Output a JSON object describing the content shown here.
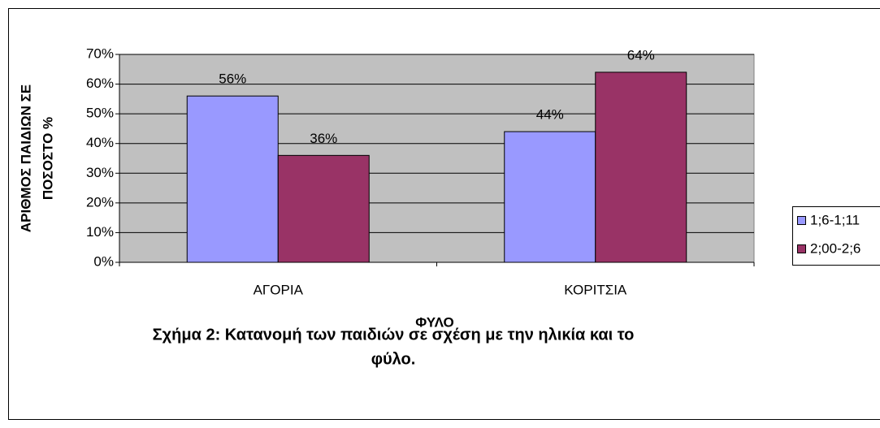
{
  "chart_data": {
    "type": "bar",
    "y_label": [
      "ΑΡΙΘΜΟΣ ΠΑΙΔΙΩΝ ΣΕ",
      "ΠΟΣΟΣΤΟ %"
    ],
    "x_label": "ΦΥΛΟ",
    "categories": [
      "ΑΓΟΡΙΑ",
      "ΚΟΡΙΤΣΙΑ"
    ],
    "series": [
      {
        "name": "1;6-1;11",
        "color": "#9999ff",
        "values": [
          56,
          44
        ],
        "value_labels": [
          "56%",
          "44%"
        ]
      },
      {
        "name": "2;00-2;6",
        "color": "#993366",
        "values": [
          36,
          64
        ],
        "value_labels": [
          "36%",
          "64%"
        ]
      }
    ],
    "ylim": [
      0,
      70
    ],
    "yticks": [
      {
        "value": 0,
        "label": "0%"
      },
      {
        "value": 10,
        "label": "10%"
      },
      {
        "value": 20,
        "label": "20%"
      },
      {
        "value": 30,
        "label": "30%"
      },
      {
        "value": 40,
        "label": "40%"
      },
      {
        "value": 50,
        "label": "50%"
      },
      {
        "value": 60,
        "label": "60%"
      },
      {
        "value": 70,
        "label": "70%"
      }
    ],
    "grid": true,
    "plot_background": "#c0c0c0",
    "legend": "right"
  },
  "caption": [
    "Σχήμα 2: Κατανομή των παιδιών σε σχέση με την ηλικία και το",
    "φύλο."
  ]
}
